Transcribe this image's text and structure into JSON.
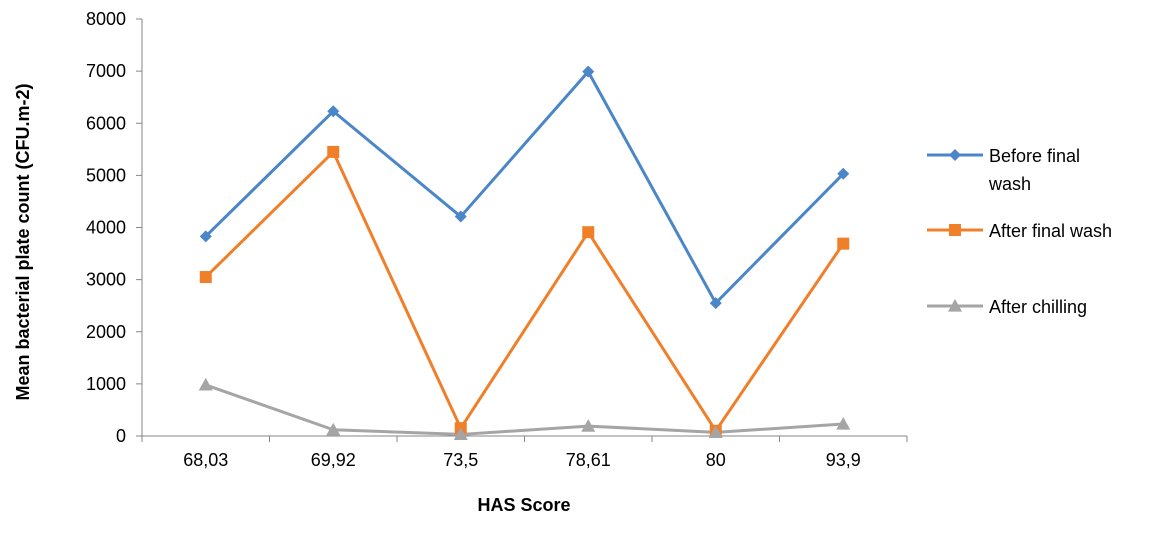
{
  "chart_data": {
    "type": "line",
    "categories": [
      "68,03",
      "69,92",
      "73,5",
      "78,61",
      "80",
      "93,9"
    ],
    "series": [
      {
        "name": "Before final wash",
        "name_lines": [
          "Before final",
          "wash"
        ],
        "color": "#4a86c8",
        "marker": "diamond",
        "values": [
          3830,
          6230,
          4210,
          6990,
          2550,
          5030
        ]
      },
      {
        "name": "After final wash",
        "name_lines": [
          "After final wash"
        ],
        "color": "#f07f2a",
        "marker": "square",
        "values": [
          3050,
          5450,
          150,
          3910,
          100,
          3690
        ]
      },
      {
        "name": "After chilling",
        "name_lines": [
          "After chilling"
        ],
        "color": "#a5a5a5",
        "marker": "triangle",
        "values": [
          980,
          120,
          30,
          190,
          70,
          230
        ]
      }
    ],
    "xlabel": "HAS Score",
    "ylabel": "Mean bacterial plate count (CFU.m-2)",
    "ylim": [
      0,
      8000
    ],
    "yticks": [
      "0",
      "1000",
      "2000",
      "3000",
      "4000",
      "5000",
      "6000",
      "7000",
      "8000"
    ],
    "grid": false,
    "legend": "right"
  }
}
